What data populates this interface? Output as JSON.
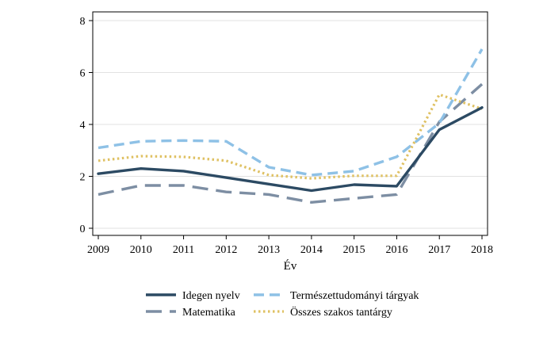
{
  "chart_data": {
    "type": "line",
    "title": "",
    "xlabel": "Év",
    "ylabel": "",
    "x": [
      2009,
      2010,
      2011,
      2012,
      2013,
      2014,
      2015,
      2016,
      2017,
      2018
    ],
    "xlim": [
      2009,
      2018
    ],
    "ylim": [
      0,
      8
    ],
    "y_ticks": [
      0,
      2,
      4,
      6,
      8
    ],
    "x_tick_labels": [
      "2009",
      "2010",
      "2011",
      "2012",
      "2013",
      "2014",
      "2015",
      "2016",
      "2017",
      "2018"
    ],
    "y_tick_labels": [
      "0",
      "2",
      "4",
      "6",
      "8"
    ],
    "grid": true,
    "legend_position": "bottom",
    "series": [
      {
        "name": "Idegen nyelv",
        "color": "#2c4a63",
        "style": "solid",
        "values": [
          2.1,
          2.3,
          2.2,
          1.95,
          1.7,
          1.45,
          1.68,
          1.62,
          3.8,
          4.65
        ]
      },
      {
        "name": "Természettudományi tárgyak",
        "color": "#8ec1e6",
        "style": "dash",
        "values": [
          3.1,
          3.35,
          3.38,
          3.35,
          2.35,
          2.05,
          2.2,
          2.75,
          4.05,
          6.9
        ]
      },
      {
        "name": "Matematika",
        "color": "#7d8ea3",
        "style": "longdash",
        "values": [
          1.3,
          1.65,
          1.65,
          1.4,
          1.3,
          1.0,
          1.15,
          1.3,
          4.1,
          5.55
        ]
      },
      {
        "name": "Összes szakos tantárgy",
        "color": "#dfc163",
        "style": "dot",
        "values": [
          2.6,
          2.78,
          2.75,
          2.6,
          2.05,
          1.92,
          2.02,
          2.02,
          5.15,
          4.6
        ]
      }
    ]
  }
}
